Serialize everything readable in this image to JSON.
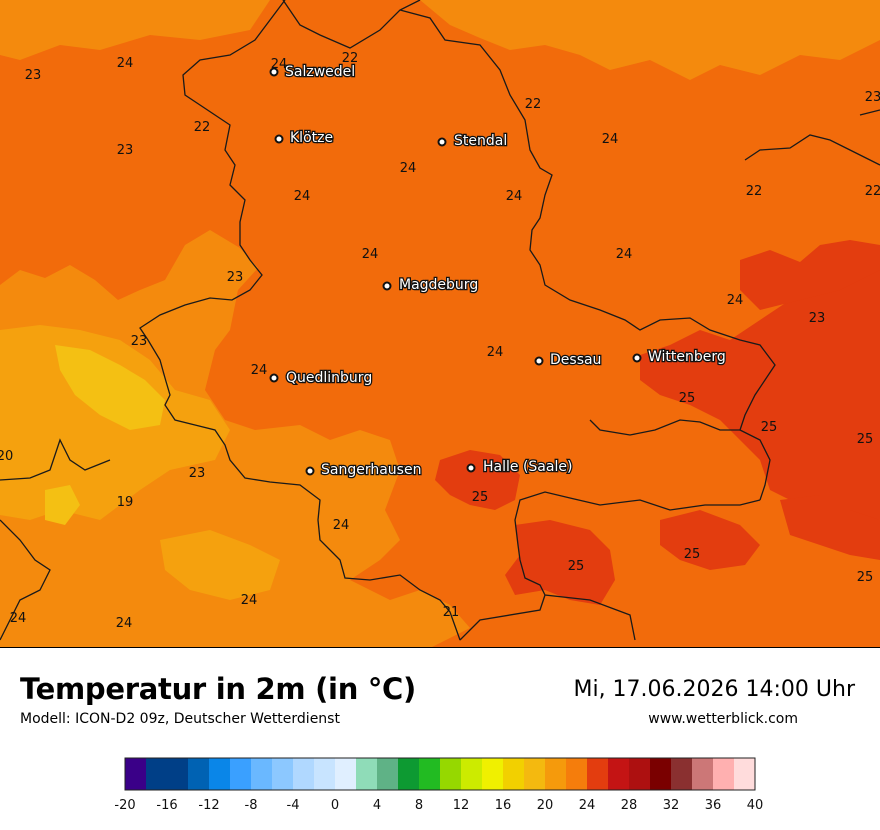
{
  "header": {
    "title": "Temperatur in 2m (in °C)",
    "model": "Modell: ICON-D2 09z, Deutscher Wetterdienst",
    "datetime": "Mi, 17.06.2026 14:00 Uhr",
    "website": "www.wetterblick.com"
  },
  "colors": {
    "base": "#f26b0b",
    "t19": "#f4c013",
    "t20": "#f5a10e",
    "t21": "#f48a0d",
    "t25": "#e33d0f",
    "border": "#1a1a1a"
  },
  "cities": [
    {
      "name": "Salzwedel"
    },
    {
      "name": "Klötze"
    },
    {
      "name": "Stendal"
    },
    {
      "name": "Magdeburg"
    },
    {
      "name": "Quedlinburg"
    },
    {
      "name": "Dessau"
    },
    {
      "name": "Wittenberg"
    },
    {
      "name": "Sangerhausen"
    },
    {
      "name": "Halle (Saale)"
    }
  ],
  "values": [
    "24",
    "22",
    "23",
    "24",
    "22",
    "23",
    "22",
    "24",
    "24",
    "24",
    "22",
    "22",
    "23",
    "24",
    "24",
    "23",
    "24",
    "24",
    "23",
    "23",
    "25",
    "25",
    "25",
    "20",
    "23",
    "24",
    "25",
    "19",
    "24",
    "25",
    "25",
    "24",
    "24",
    "21",
    "24"
  ],
  "legend": {
    "colors": [
      "#3a0088",
      "#003f87",
      "#003f87",
      "#0062b3",
      "#0a86e8",
      "#3aa0ff",
      "#6ab8ff",
      "#8cc8ff",
      "#b0d8ff",
      "#c8e4ff",
      "#e0efff",
      "#8fdcb8",
      "#5fb286",
      "#0d9a32",
      "#22bb22",
      "#96d800",
      "#cceb00",
      "#f0f000",
      "#f2d000",
      "#f4b90f",
      "#f59a0c",
      "#f57d0c",
      "#e33d0f",
      "#c41414",
      "#ad1010",
      "#7a0000",
      "#8a3030",
      "#cc7777",
      "#ffb0b0",
      "#ffdcdc"
    ],
    "labels": [
      "-20",
      "-16",
      "-12",
      "-8",
      "-4",
      "0",
      "4",
      "8",
      "12",
      "16",
      "20",
      "24",
      "28",
      "32",
      "36",
      "40"
    ]
  }
}
